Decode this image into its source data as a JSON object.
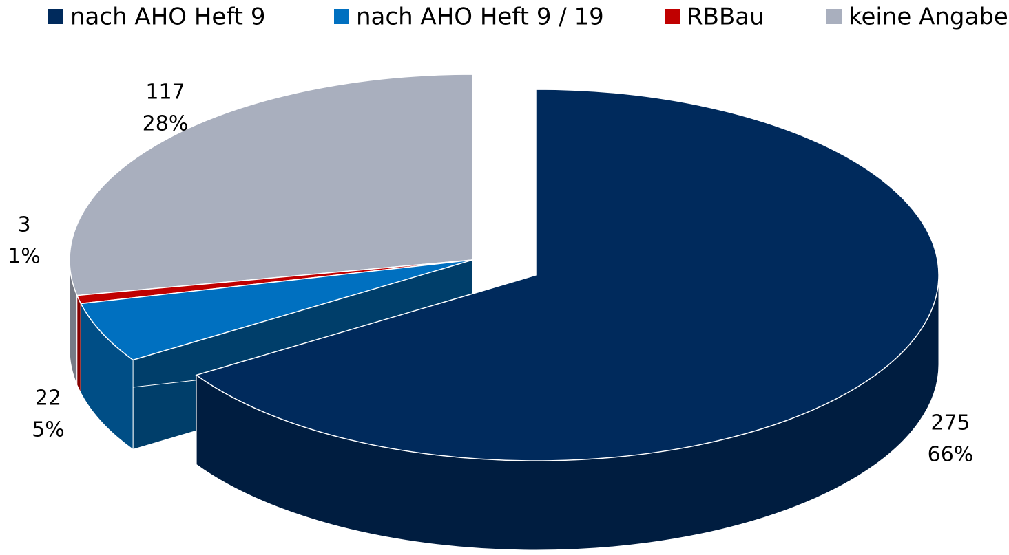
{
  "chart_data": {
    "type": "pie3d",
    "categories": [
      "nach AHO Heft 9",
      "nach AHO Heft 9 / 19",
      "RBBau",
      "keine Angabe"
    ],
    "values": [
      275,
      22,
      3,
      117
    ],
    "percent_labels": [
      "66%",
      "5%",
      "1%",
      "28%"
    ],
    "colors": [
      "#002a5c",
      "#0070c0",
      "#c00000",
      "#a9afbe"
    ],
    "legend": "top"
  }
}
